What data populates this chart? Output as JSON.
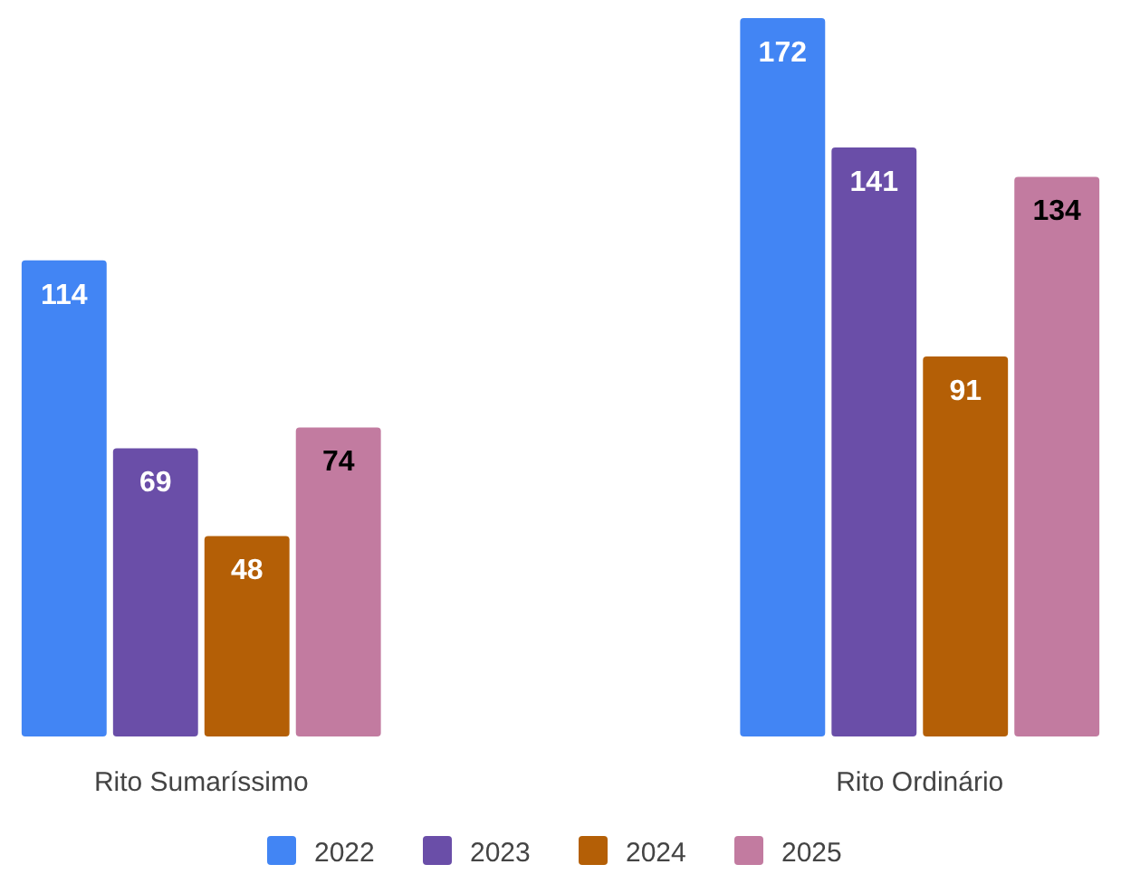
{
  "chart_data": {
    "type": "bar",
    "categories": [
      "Rito Sumaríssimo",
      "Rito Ordinário"
    ],
    "series": [
      {
        "name": "2022",
        "color": "#4285f4",
        "values": [
          114,
          172
        ]
      },
      {
        "name": "2023",
        "color": "#6a4ea8",
        "values": [
          69,
          141
        ]
      },
      {
        "name": "2024",
        "color": "#b45f06",
        "values": [
          48,
          91
        ]
      },
      {
        "name": "2025",
        "color": "#c27ba0",
        "values": [
          74,
          134
        ]
      }
    ],
    "data_labels": true,
    "legend": "bottom",
    "grid": false
  }
}
